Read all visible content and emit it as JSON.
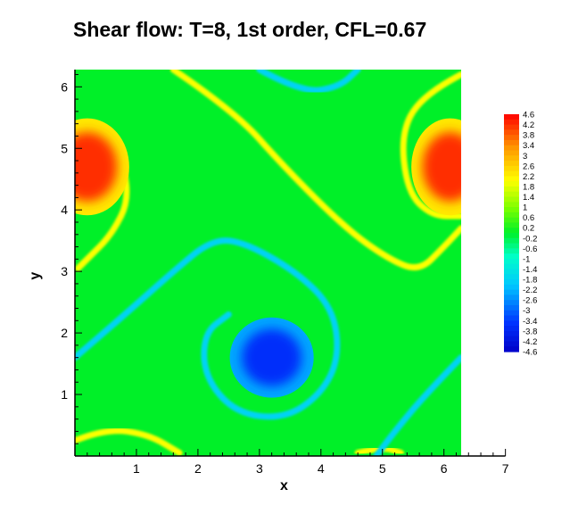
{
  "chart_data": {
    "type": "heatmap",
    "title": "Shear flow: T=8, 1st order, CFL=0.67",
    "xlabel": "x",
    "ylabel": "y",
    "xlim": [
      0,
      7
    ],
    "ylim": [
      0,
      6.28
    ],
    "domain": {
      "x": [
        0,
        6.28
      ],
      "y": [
        0,
        6.28
      ]
    },
    "x_ticks": [
      "1",
      "2",
      "3",
      "4",
      "5",
      "6",
      "7"
    ],
    "y_ticks": [
      "1",
      "2",
      "3",
      "4",
      "5",
      "6"
    ],
    "background_value": 0,
    "colorbar": {
      "min": -4.6,
      "max": 4.6,
      "labels": [
        "4.6",
        "4.2",
        "3.8",
        "3.4",
        "3",
        "2.6",
        "2.2",
        "1.8",
        "1.4",
        "1",
        "0.6",
        "0.2",
        "-0.2",
        "-0.6",
        "-1",
        "-1.4",
        "-1.8",
        "-2.2",
        "-2.6",
        "-3",
        "-3.4",
        "-3.8",
        "-4.2",
        "-4.6"
      ],
      "placement": "right"
    },
    "features": [
      {
        "kind": "blob",
        "value": 4.2,
        "center": [
          0.2,
          4.7
        ],
        "radii": [
          0.65,
          0.75
        ]
      },
      {
        "kind": "blob",
        "value": 4.2,
        "center": [
          6.1,
          4.7
        ],
        "radii": [
          0.6,
          0.75
        ]
      },
      {
        "kind": "blob",
        "value": -3.6,
        "center": [
          3.2,
          1.6
        ],
        "radii": [
          0.65,
          0.62
        ]
      },
      {
        "kind": "filament",
        "value": 2.0,
        "points": [
          [
            0.1,
            5.4
          ],
          [
            0.7,
            5.0
          ],
          [
            0.9,
            4.2
          ],
          [
            0.6,
            3.6
          ],
          [
            0.2,
            3.2
          ],
          [
            0.05,
            3.05
          ]
        ]
      },
      {
        "kind": "filament",
        "value": 2.0,
        "points": [
          [
            1.6,
            6.28
          ],
          [
            2.6,
            5.6
          ],
          [
            3.4,
            4.7
          ],
          [
            4.4,
            3.7
          ],
          [
            5.1,
            3.2
          ],
          [
            5.6,
            3.0
          ],
          [
            6.0,
            3.4
          ],
          [
            6.28,
            3.7
          ]
        ]
      },
      {
        "kind": "filament",
        "value": 2.0,
        "points": [
          [
            6.28,
            6.2
          ],
          [
            5.7,
            5.9
          ],
          [
            5.3,
            5.3
          ],
          [
            5.4,
            4.3
          ],
          [
            5.8,
            3.9
          ],
          [
            6.28,
            3.9
          ]
        ]
      },
      {
        "kind": "filament",
        "value": 2.0,
        "points": [
          [
            0,
            0.25
          ],
          [
            0.5,
            0.45
          ],
          [
            1.2,
            0.35
          ],
          [
            1.7,
            0.05
          ]
        ]
      },
      {
        "kind": "filament",
        "value": 2.0,
        "points": [
          [
            4.6,
            0.05
          ],
          [
            5.0,
            0.15
          ],
          [
            5.3,
            0.05
          ]
        ]
      },
      {
        "kind": "filament",
        "value": -1.8,
        "points": [
          [
            0,
            1.6
          ],
          [
            0.7,
            2.2
          ],
          [
            1.6,
            3.0
          ],
          [
            2.2,
            3.5
          ],
          [
            2.7,
            3.5
          ],
          [
            3.6,
            3.0
          ],
          [
            4.2,
            2.4
          ],
          [
            4.3,
            1.6
          ],
          [
            4.0,
            1.0
          ],
          [
            3.4,
            0.6
          ],
          [
            2.6,
            0.7
          ],
          [
            2.1,
            1.3
          ],
          [
            2.1,
            2.0
          ],
          [
            2.5,
            2.3
          ]
        ]
      },
      {
        "kind": "filament",
        "value": -1.8,
        "points": [
          [
            3.0,
            6.28
          ],
          [
            3.7,
            5.9
          ],
          [
            4.3,
            6.0
          ],
          [
            4.6,
            6.28
          ]
        ]
      },
      {
        "kind": "filament",
        "value": -1.8,
        "points": [
          [
            6.28,
            1.6
          ],
          [
            5.7,
            1.0
          ],
          [
            5.2,
            0.4
          ],
          [
            4.9,
            0.0
          ]
        ]
      }
    ]
  }
}
